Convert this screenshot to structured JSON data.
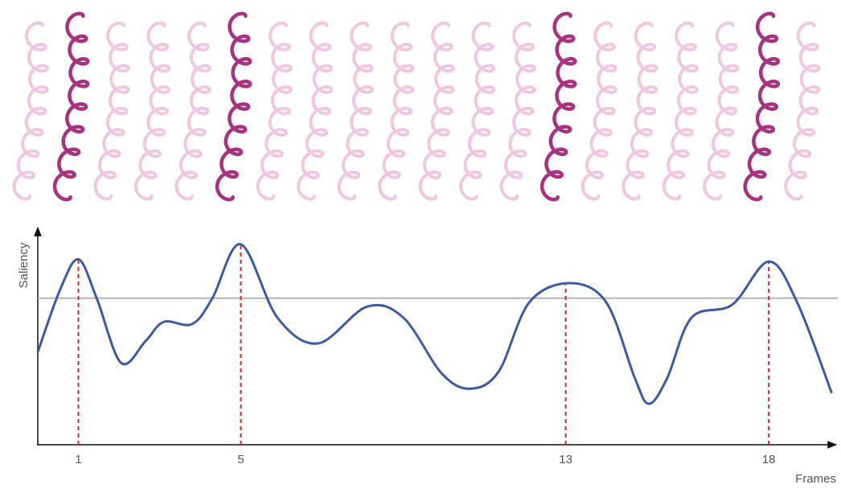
{
  "chart_data": {
    "type": "line",
    "y_label": "Saliency",
    "x_label": "Frames",
    "x": [
      0,
      0.55,
      1,
      1.45,
      2.05,
      2.65,
      3.1,
      3.8,
      4.3,
      5,
      5.9,
      6.9,
      8.1,
      9,
      9.95,
      10.65,
      11.35,
      12.1,
      13.1,
      14,
      14.7,
      15.05,
      15.5,
      16.1,
      17.1,
      18,
      18.7,
      19.55
    ],
    "values": [
      43,
      72,
      86,
      68,
      38,
      48,
      57,
      56,
      68,
      93,
      59,
      47,
      64,
      59,
      33,
      26,
      34,
      66,
      75,
      66,
      31,
      19,
      31,
      59,
      65,
      85,
      66,
      24
    ],
    "color": "#3d5aa8",
    "threshold": 68,
    "threshold_color": "#b4b4b8",
    "highlight_color": "#d42a2a",
    "xlim": [
      0,
      19.6
    ],
    "ylim": [
      0,
      100
    ],
    "xticks": [
      1,
      5,
      13,
      18
    ]
  }
}
